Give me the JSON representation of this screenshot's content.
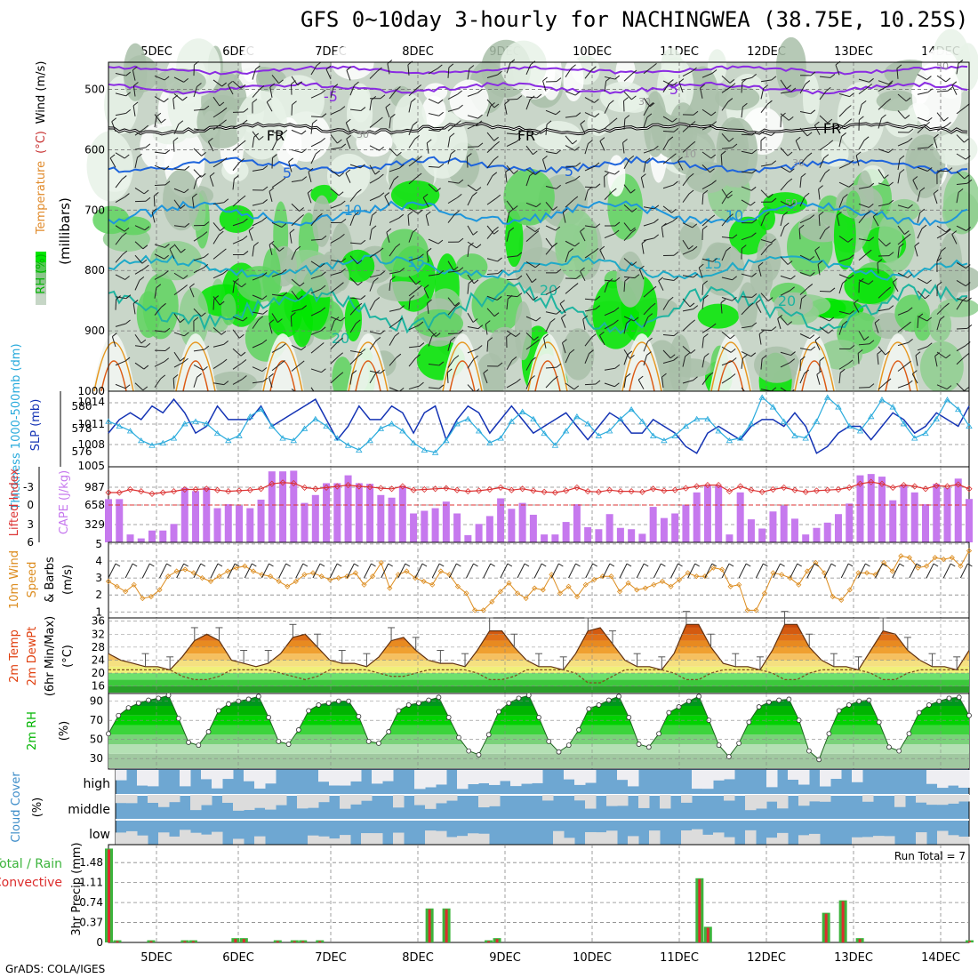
{
  "title": "GFS 0~10day 3-hourly for NACHINGWEA (38.75E, 10.25S)",
  "footer": "GrADS: COLA/IGES",
  "days": [
    "5DEC",
    "6DEC",
    "7DEC",
    "8DEC",
    "9DEC",
    "10DEC",
    "11DEC",
    "12DEC",
    "13DEC",
    "14DEC"
  ],
  "colors": {
    "rh_green": "#00dd00",
    "wind_purple": "#8a2be2",
    "fr": "#000000",
    "temp_blue": "#1e64dc",
    "slp": "#1433b4",
    "thick": "#28aadc",
    "cape": "#c679ee",
    "li": "#dc3232",
    "wind10": "#dc8c1e",
    "cloud_blue": "#6ea7d2",
    "rain_green": "#3cb43c",
    "conv_red": "#dc2d2d"
  },
  "panels": {
    "upper": {
      "ylabel_parts": [
        {
          "text": "RH (%)",
          "color": "#00b400"
        },
        {
          "text": "Temperature",
          "color": "#e08a2a"
        },
        {
          "text": "(°C)",
          "color": "#c83232"
        },
        {
          "text": "Wind (m/s)",
          "color": "#000000"
        }
      ],
      "ylabel2": "(millibars)",
      "ticks": [
        "500",
        "600",
        "700",
        "800",
        "900",
        "1000"
      ],
      "contour_labels": [
        {
          "text": "-5",
          "color": "#8a2be2"
        },
        {
          "text": "5",
          "color": "#8a2be2"
        },
        {
          "text": "FR",
          "color": "#000000"
        },
        {
          "text": "FR",
          "color": "#000000"
        },
        {
          "text": "FR",
          "color": "#000000"
        },
        {
          "text": "5",
          "color": "#1e64dc"
        },
        {
          "text": "5",
          "color": "#1e64dc"
        },
        {
          "text": "10",
          "color": "#1e96dc"
        },
        {
          "text": "10",
          "color": "#1e96dc"
        },
        {
          "text": "15",
          "color": "#1eaac8"
        },
        {
          "text": "15",
          "color": "#1eaac8"
        },
        {
          "text": "20",
          "color": "#1eb4a0"
        },
        {
          "text": "20",
          "color": "#1eb4a0"
        },
        {
          "text": "20",
          "color": "#1eb4a0"
        },
        {
          "text": "30",
          "color": "#999999"
        },
        {
          "text": "30",
          "color": "#999999"
        },
        {
          "text": "10",
          "color": "#999999"
        },
        {
          "text": "30",
          "color": "#999999"
        },
        {
          "text": "50",
          "color": "#999999"
        },
        {
          "text": "50",
          "color": "#999999"
        }
      ]
    },
    "slp": {
      "label1": "Thickness 1000-500mb (dm)",
      "label2": "SLP (mb)",
      "left_ticks": [
        "580",
        "578",
        "576"
      ],
      "right_ticks": [
        "1014",
        "1011",
        "1008",
        "1005"
      ]
    },
    "cape": {
      "label1": "Lifted Index",
      "label2": "CAPE (J/kg)",
      "left_ticks": [
        "-3",
        "0",
        "3",
        "6"
      ],
      "right_ticks": [
        "987",
        "658",
        "329"
      ]
    },
    "wind10": {
      "label1": "10m Wind",
      "label2": "Speed",
      "label3": "& Barbs",
      "label4": "(m/s)",
      "ticks": [
        "1",
        "2",
        "3",
        "4",
        "5"
      ]
    },
    "temp": {
      "label1": "2m Temp",
      "label2": "2m DewPt",
      "label3": "(6hr Min/Max)",
      "label4": "(°C)",
      "ticks": [
        "16",
        "20",
        "24",
        "28",
        "32",
        "36"
      ]
    },
    "rh": {
      "label1": "2m RH",
      "label2": "(%)",
      "ticks": [
        "30",
        "50",
        "70",
        "90"
      ]
    },
    "cloud": {
      "label1": "Cloud Cover",
      "label2": "(%)",
      "levels": [
        "high",
        "middle",
        "low"
      ]
    },
    "precip": {
      "label1": "Total / Rain",
      "label2": "Convective",
      "label3": "3hr Precip (mm)",
      "ticks": [
        "0",
        "0.37",
        "0.74",
        "1.11",
        "1.48"
      ],
      "run_total": "Run Total = 7"
    }
  },
  "chart_data": [
    {
      "type": "line",
      "name": "SLP / Thickness",
      "series": [
        {
          "name": "SLP (mb)",
          "values": [
            1009,
            1011,
            1012,
            1011,
            1013,
            1012,
            1014,
            1012,
            1009,
            1010,
            1013,
            1011,
            1011,
            1011,
            1013,
            1010,
            1011,
            1012,
            1013,
            1014,
            1011,
            1008,
            1010,
            1013,
            1011,
            1011,
            1013,
            1012,
            1009,
            1012,
            1013,
            1008,
            1011,
            1013,
            1012,
            1009,
            1011,
            1013,
            1011,
            1009,
            1010,
            1011,
            1012,
            1010,
            1008,
            1010,
            1012,
            1011,
            1009,
            1009,
            1011,
            1010,
            1009,
            1007,
            1006,
            1009,
            1010,
            1009,
            1008,
            1010,
            1011,
            1011,
            1010,
            1012,
            1010,
            1006,
            1007,
            1009,
            1010,
            1010,
            1008,
            1010,
            1012,
            1011,
            1009,
            1010,
            1012,
            1011,
            1010,
            1013
          ]
        },
        {
          "name": "Thickness 1000-500mb (dm)",
          "values": [
            578.4,
            578.0,
            577.6,
            576.8,
            576.4,
            576.6,
            577.0,
            578.2,
            578.4,
            578.2,
            577.4,
            576.8,
            577.2,
            578.8,
            579.4,
            578.0,
            577.0,
            576.8,
            577.8,
            578.6,
            578.0,
            577.0,
            576.4,
            576.0,
            576.8,
            577.8,
            578.2,
            577.6,
            576.6,
            576.0,
            575.8,
            576.8,
            578.2,
            578.6,
            577.6,
            576.6,
            577.0,
            578.4,
            579.2,
            578.6,
            577.4,
            576.4,
            577.6,
            578.8,
            578.2,
            577.2,
            577.6,
            578.6,
            579.4,
            578.4,
            577.2,
            576.8,
            577.2,
            578.0,
            578.6,
            578.6,
            577.6,
            576.8,
            577.0,
            578.2,
            580.4,
            579.6,
            578.4,
            577.2,
            577.0,
            578.4,
            580.4,
            579.6,
            578.0,
            577.6,
            578.8,
            580.2,
            579.6,
            578.2,
            577.0,
            577.4,
            578.6,
            580.2,
            579.4,
            578.0
          ]
        }
      ]
    },
    {
      "type": "bar",
      "name": "CAPE / Lifted Index",
      "series": [
        {
          "name": "CAPE (J/kg)",
          "values": [
            658,
            658,
            120,
            60,
            180,
            180,
            280,
            830,
            780,
            830,
            520,
            580,
            560,
            520,
            650,
            1080,
            1080,
            1090,
            600,
            720,
            900,
            900,
            1020,
            900,
            890,
            720,
            680,
            860,
            440,
            480,
            520,
            620,
            440,
            110,
            280,
            400,
            670,
            510,
            600,
            420,
            120,
            120,
            310,
            580,
            230,
            200,
            430,
            220,
            200,
            130,
            540,
            370,
            440,
            570,
            760,
            860,
            860,
            120,
            760,
            350,
            210,
            470,
            560,
            360,
            120,
            220,
            300,
            430,
            590,
            1020,
            1040,
            1000,
            640,
            880,
            760,
            580,
            890,
            830,
            970,
            660
          ]
        },
        {
          "name": "Lifted Index",
          "values": [
            -2,
            -2,
            -2.5,
            -2.2,
            -1.8,
            -2,
            -2.2,
            -2.5,
            -2.5,
            -2.6,
            -2.4,
            -2.2,
            -2.3,
            -2.4,
            -2.6,
            -3.4,
            -3.6,
            -3.5,
            -2.8,
            -2.6,
            -2.8,
            -3,
            -3.2,
            -3,
            -2.9,
            -2.7,
            -2.6,
            -3,
            -2.4,
            -2.5,
            -2.6,
            -2.7,
            -2.4,
            -2.2,
            -2.3,
            -2.5,
            -2.8,
            -2.4,
            -2.6,
            -2.3,
            -2.1,
            -2,
            -2.3,
            -2.8,
            -2.2,
            -2.1,
            -2.4,
            -2.2,
            -2.2,
            -2.1,
            -2.6,
            -2.3,
            -2.4,
            -2.7,
            -3,
            -3.2,
            -3.2,
            -2.2,
            -3,
            -2.4,
            -2.1,
            -2.5,
            -2.8,
            -2.4,
            -2.1,
            -2.3,
            -2.4,
            -2.5,
            -2.8,
            -3.4,
            -3.7,
            -3.4,
            -2.8,
            -3.2,
            -3,
            -2.6,
            -3.1,
            -3,
            -3.3,
            -2.6
          ]
        }
      ]
    },
    {
      "type": "line",
      "name": "10m Wind Speed",
      "values": [
        2.8,
        2.5,
        2.2,
        2.6,
        1.8,
        1.9,
        2.3,
        3.1,
        3.4,
        3.5,
        3.3,
        3,
        2.8,
        3.1,
        3.4,
        3.6,
        3.7,
        3.4,
        3.2,
        3.1,
        2.8,
        2.5,
        2.8,
        3.2,
        3.3,
        3.1,
        2.9,
        3,
        3.1,
        3.3,
        2.6,
        3.1,
        3.9,
        2.4,
        3.2,
        3.4,
        3,
        2.8,
        2.6,
        3.4,
        3.2,
        2.5,
        2.1,
        1.1,
        1.1,
        1.6,
        2.2,
        2.7,
        2.1,
        1.8,
        2.4,
        2.3,
        3.2,
        2.1,
        2.5,
        1.9,
        2.6,
        2.9,
        3.1,
        3.1,
        2.2,
        2.7,
        2.3,
        2.4,
        2.6,
        2.8,
        2.5,
        2.9,
        3.3,
        3.1,
        3.1,
        3.6,
        3.5,
        2.5,
        2.6,
        1.1,
        1.1,
        2.1,
        3.3,
        3.2,
        3,
        2.6,
        3.4,
        3.9,
        3.3,
        1.9,
        1.7,
        2.3,
        3.3,
        3.3,
        3.2,
        3.9,
        3.4,
        4.3,
        4.2,
        3.6,
        3.7,
        4.2,
        4.1,
        4.2,
        3.7,
        4.6
      ]
    },
    {
      "type": "area",
      "name": "2m Temp / DewPt",
      "series": [
        {
          "name": "2m Temp",
          "values": [
            26,
            24,
            23,
            22,
            22,
            21,
            25,
            30,
            32,
            30,
            24,
            23,
            22,
            23,
            26,
            31,
            32,
            28,
            24,
            23,
            23,
            22,
            25,
            30,
            31,
            27,
            24,
            23,
            23,
            22,
            27,
            33,
            33,
            28,
            24,
            22,
            22,
            21,
            26,
            33,
            34,
            29,
            24,
            22,
            22,
            21,
            26,
            35,
            35,
            28,
            23,
            22,
            22,
            21,
            27,
            35,
            35,
            28,
            24,
            22,
            22,
            21,
            27,
            33,
            32,
            27,
            24,
            22,
            22,
            21,
            27
          ]
        },
        {
          "name": "2m DewPt",
          "values": [
            21,
            21,
            21,
            21,
            21,
            21,
            19,
            18,
            18,
            19,
            21,
            21,
            21,
            21,
            20,
            19,
            18,
            19,
            21,
            21,
            21,
            21,
            20,
            19,
            19,
            20,
            21,
            21,
            21,
            21,
            20,
            18,
            18,
            19,
            21,
            21,
            21,
            21,
            20,
            17,
            17,
            19,
            21,
            21,
            21,
            21,
            20,
            18,
            18,
            20,
            21,
            21,
            21,
            21,
            20,
            18,
            18,
            20,
            21,
            21,
            21,
            21,
            20,
            18,
            18,
            20,
            21,
            21,
            21,
            21,
            21
          ]
        }
      ]
    },
    {
      "type": "area",
      "name": "2m RH",
      "values": [
        56,
        75,
        83,
        88,
        91,
        93,
        96,
        72,
        47,
        44,
        58,
        80,
        87,
        90,
        92,
        95,
        73,
        48,
        45,
        60,
        80,
        86,
        88,
        90,
        90,
        74,
        48,
        46,
        58,
        80,
        86,
        88,
        91,
        94,
        73,
        52,
        38,
        34,
        55,
        79,
        88,
        93,
        96,
        73,
        48,
        37,
        44,
        60,
        82,
        86,
        91,
        95,
        73,
        45,
        42,
        56,
        78,
        84,
        90,
        95,
        70,
        44,
        32,
        46,
        68,
        84,
        89,
        91,
        92,
        70,
        38,
        29,
        56,
        80,
        86,
        90,
        91,
        68,
        42,
        38,
        56,
        78,
        86,
        90,
        93,
        94,
        75
      ]
    },
    {
      "type": "bar",
      "name": "3hr Precip (mm)",
      "values": [
        1.74,
        0.04,
        0,
        0,
        0,
        0.04,
        0,
        0,
        0,
        0.04,
        0.04,
        0,
        0,
        0,
        0,
        0.08,
        0.08,
        0,
        0,
        0,
        0.04,
        0,
        0.04,
        0.04,
        0,
        0.04,
        0,
        0,
        0,
        0,
        0,
        0,
        0,
        0,
        0,
        0,
        0,
        0,
        0.63,
        0,
        0.63,
        0,
        0,
        0,
        0,
        0.04,
        0.08,
        0,
        0,
        0,
        0,
        0,
        0,
        0,
        0,
        0,
        0,
        0,
        0,
        0,
        0,
        0,
        0,
        0,
        0,
        0,
        0,
        0,
        0,
        0,
        1.19,
        0.29,
        0,
        0,
        0,
        0,
        0,
        0,
        0,
        0,
        0,
        0,
        0,
        0,
        0,
        0.55,
        0,
        0.78,
        0,
        0.08,
        0,
        0,
        0,
        0,
        0,
        0,
        0,
        0,
        0,
        0,
        0,
        0,
        0.04
      ]
    }
  ]
}
